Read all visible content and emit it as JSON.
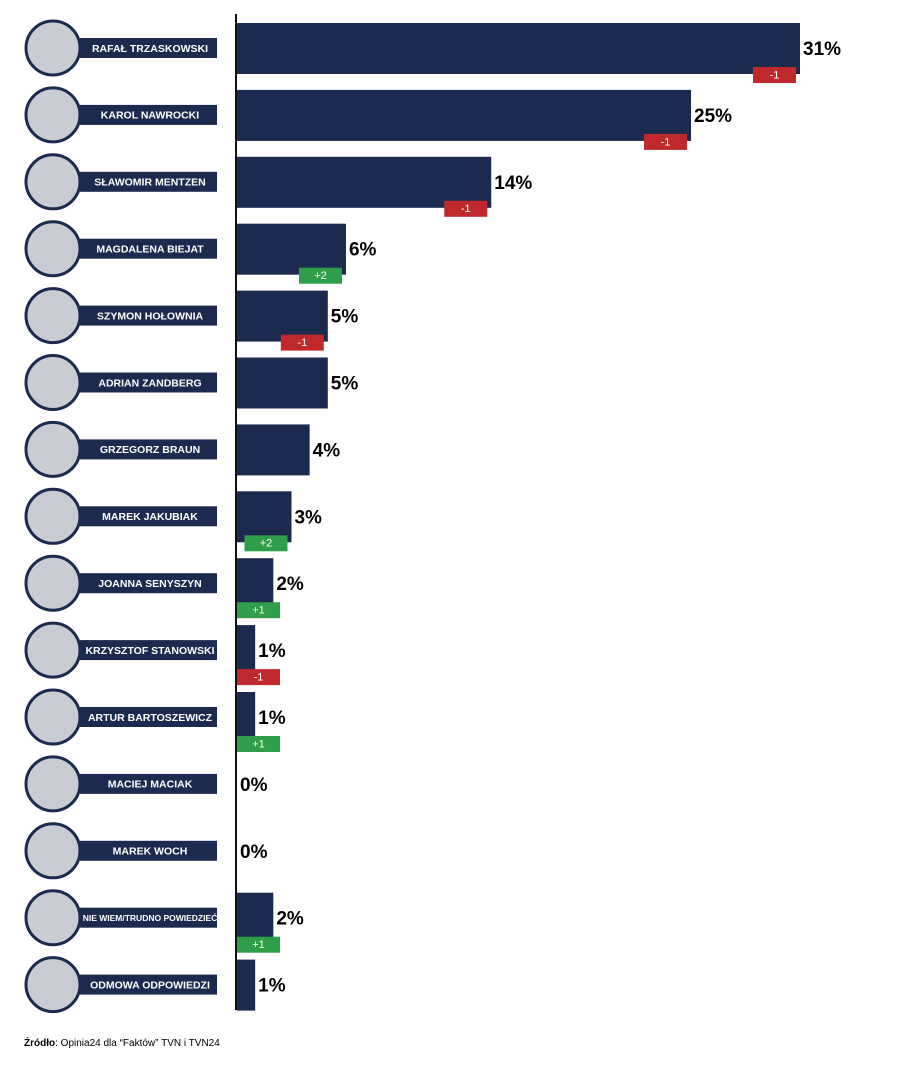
{
  "chart_data": {
    "type": "bar",
    "orientation": "horizontal",
    "categories": [
      "RAFAŁ TRZASKOWSKI",
      "KAROL NAWROCKI",
      "SŁAWOMIR MENTZEN",
      "MAGDALENA BIEJAT",
      "SZYMON HOŁOWNIA",
      "ADRIAN ZANDBERG",
      "GRZEGORZ BRAUN",
      "MAREK JAKUBIAK",
      "JOANNA SENYSZYN",
      "KRZYSZTOF STANOWSKI",
      "ARTUR BARTOSZEWICZ",
      "MACIEJ MACIAK",
      "MAREK WOCH",
      "NIE WIEM/TRUDNO POWIEDZIEĆ",
      "ODMOWA ODPOWIEDZI"
    ],
    "values": [
      31,
      25,
      14,
      6,
      5,
      5,
      4,
      3,
      2,
      1,
      1,
      0,
      0,
      2,
      1
    ],
    "value_labels": [
      "31%",
      "25%",
      "14%",
      "6%",
      "5%",
      "5%",
      "4%",
      "3%",
      "2%",
      "1%",
      "1%",
      "0%",
      "0%",
      "2%",
      "1%"
    ],
    "changes": [
      -1,
      -1,
      -1,
      2,
      -1,
      null,
      null,
      2,
      1,
      -1,
      1,
      null,
      null,
      1,
      null
    ],
    "change_labels": [
      "-1",
      "-1",
      "-1",
      "+2",
      "-1",
      null,
      null,
      "+2",
      "+1",
      "-1",
      "+1",
      null,
      null,
      "+1",
      null
    ],
    "color": "#1b2a4e",
    "increase_color": "#2e9e48",
    "decrease_color": "#c0292b",
    "source_label": "Źródło",
    "source": ": Opinia24 dla “Faktów” TVN i TVN24"
  }
}
